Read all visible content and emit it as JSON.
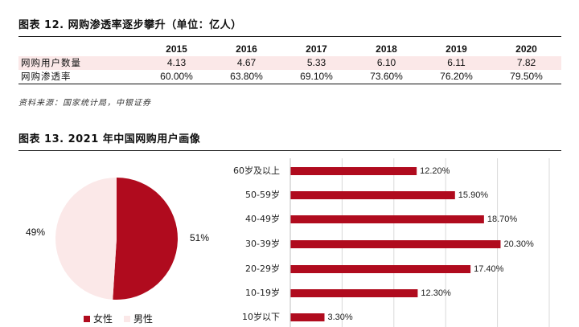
{
  "fig12": {
    "title": "图表 12. 网购渗透率逐步攀升（单位：亿人）",
    "years": [
      "2015",
      "2016",
      "2017",
      "2018",
      "2019",
      "2020"
    ],
    "rows": [
      {
        "label": "网购用户数量",
        "values": [
          "4.13",
          "4.67",
          "5.33",
          "6.10",
          "6.11",
          "7.82"
        ]
      },
      {
        "label": "网购渗透率",
        "values": [
          "60.00%",
          "63.80%",
          "69.10%",
          "73.60%",
          "76.20%",
          "79.50%"
        ]
      }
    ],
    "source": "资料来源：国家统计局，中银证券"
  },
  "fig13": {
    "title": "图表 13. 2021 年中国网购用户画像"
  },
  "colors": {
    "accent": "#b00b1e",
    "light": "#fbe8e8"
  },
  "chart_data": [
    {
      "type": "pie",
      "labels": [
        "女性",
        "男性"
      ],
      "values": [
        51,
        49
      ],
      "value_labels": [
        "51%",
        "49%"
      ],
      "colors": [
        "#b00b1e",
        "#fbe8e8"
      ],
      "legend": [
        "女性",
        "男性"
      ],
      "legend_position": "bottom"
    },
    {
      "type": "bar",
      "orientation": "horizontal",
      "categories": [
        "60岁及以上",
        "50-59岁",
        "40-49岁",
        "30-39岁",
        "20-29岁",
        "10-19岁",
        "10岁以下"
      ],
      "values": [
        12.2,
        15.9,
        18.7,
        20.3,
        17.4,
        12.3,
        3.3
      ],
      "value_labels": [
        "12.20%",
        "15.90%",
        "18.70%",
        "20.30%",
        "17.40%",
        "12.30%",
        "3.30%"
      ],
      "color": "#b00b1e",
      "xlim": [
        0,
        25
      ],
      "grid": true
    }
  ]
}
